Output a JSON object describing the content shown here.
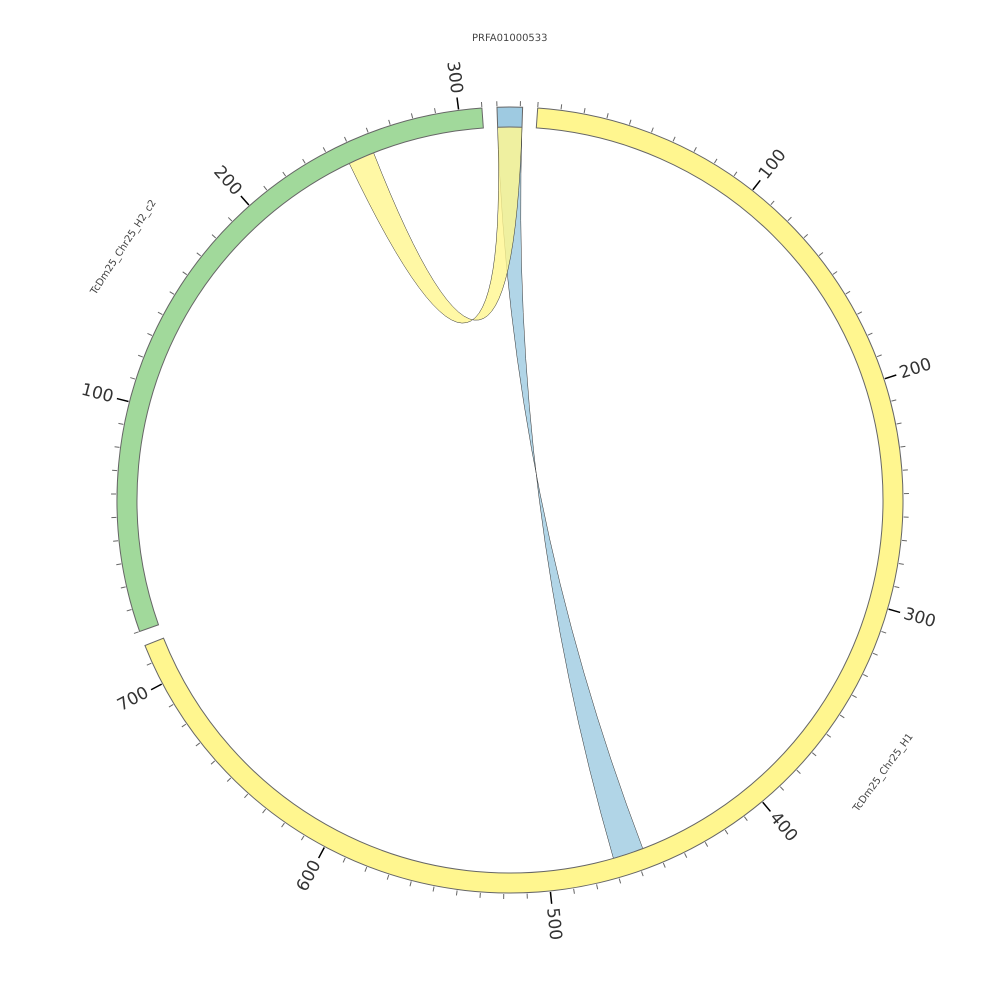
{
  "chart_data": {
    "type": "chord",
    "segments": [
      {
        "name": "PRFA01000533",
        "length": 11,
        "color": "#9ecae1",
        "ticks": []
      },
      {
        "name": "TcDm25_Chr25_H1",
        "length": 718,
        "color": "#fff68f",
        "ticks": [
          100,
          200,
          300,
          400,
          500,
          600,
          700
        ]
      },
      {
        "name": "TcDm25_Chr25_H2_c2",
        "length": 310,
        "color": "#a1d99b",
        "ticks": [
          100,
          200,
          300
        ]
      }
    ],
    "minor_tick_step": 10,
    "links": [
      {
        "source": "PRFA01000533",
        "source_range": [
          0,
          11
        ],
        "target": "TcDm25_Chr25_H1",
        "target_range": [
          456,
          470
        ],
        "color": "#9ecae1"
      },
      {
        "source": "PRFA01000533",
        "source_range": [
          0,
          11
        ],
        "target": "TcDm25_Chr25_H2_c2",
        "target_range": [
          247,
          259
        ],
        "color": "#fff68f"
      }
    ]
  }
}
